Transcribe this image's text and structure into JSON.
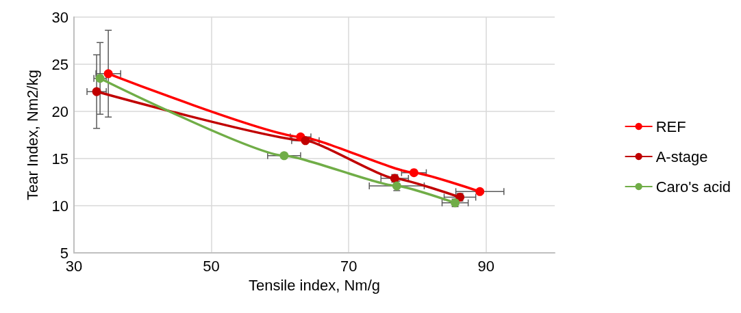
{
  "chart_data": {
    "type": "line",
    "xlabel": "Tensile index, Nm/g",
    "ylabel": "Tear Index, Nm2/kg",
    "xlim": [
      30,
      100
    ],
    "xticks": [
      30,
      50,
      70,
      90
    ],
    "ylim": [
      5,
      30
    ],
    "yticks": [
      5,
      10,
      15,
      20,
      25,
      30
    ],
    "grid": true,
    "legend": "right",
    "marker": "circle",
    "series": [
      {
        "name": "REF",
        "color": "#ff0000",
        "x": [
          35.0,
          63.0,
          79.5,
          89.1
        ],
        "values": [
          24.0,
          17.3,
          13.5,
          11.5
        ],
        "xerrors": [
          1.8,
          1.5,
          1.8,
          3.5
        ],
        "errors": [
          4.6,
          null,
          null,
          null
        ]
      },
      {
        "name": "A-stage",
        "color": "#c00000",
        "x": [
          33.3,
          63.7,
          76.7,
          86.2
        ],
        "values": [
          22.1,
          16.9,
          12.9,
          10.9
        ],
        "xerrors": [
          1.4,
          2.0,
          2.0,
          2.3
        ],
        "errors": [
          3.9,
          null,
          0.4,
          0.4
        ]
      },
      {
        "name": "Caro's acid",
        "color": "#70ad47",
        "x": [
          33.8,
          60.6,
          77.0,
          85.5
        ],
        "values": [
          23.5,
          15.3,
          12.1,
          10.3
        ],
        "xerrors": [
          0.9,
          2.4,
          4.0,
          1.9
        ],
        "errors": [
          3.8,
          null,
          0.5,
          0.4
        ]
      }
    ]
  }
}
